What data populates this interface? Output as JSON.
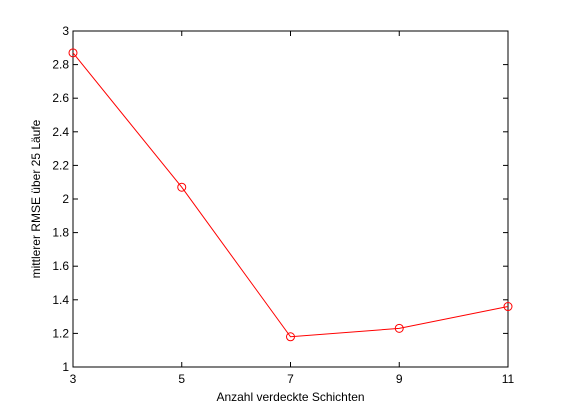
{
  "chart_data": {
    "type": "line",
    "title": "",
    "xlabel": "Anzahl verdeckte Schichten",
    "ylabel": "mittlerer RMSE über 25 Läufe",
    "xlim": [
      3,
      11
    ],
    "ylim": [
      1,
      3
    ],
    "x_ticks": [
      "3",
      "5",
      "7",
      "9",
      "11"
    ],
    "y_ticks": [
      "1",
      "1.2",
      "1.4",
      "1.6",
      "1.8",
      "2",
      "2.2",
      "2.4",
      "2.6",
      "2.8",
      "3"
    ],
    "grid": false,
    "series": [
      {
        "x": [
          3,
          5,
          7,
          9,
          11
        ],
        "values": [
          2.87,
          2.07,
          1.18,
          1.23,
          1.36
        ],
        "color": "#ff0000",
        "marker": "circle"
      }
    ]
  }
}
